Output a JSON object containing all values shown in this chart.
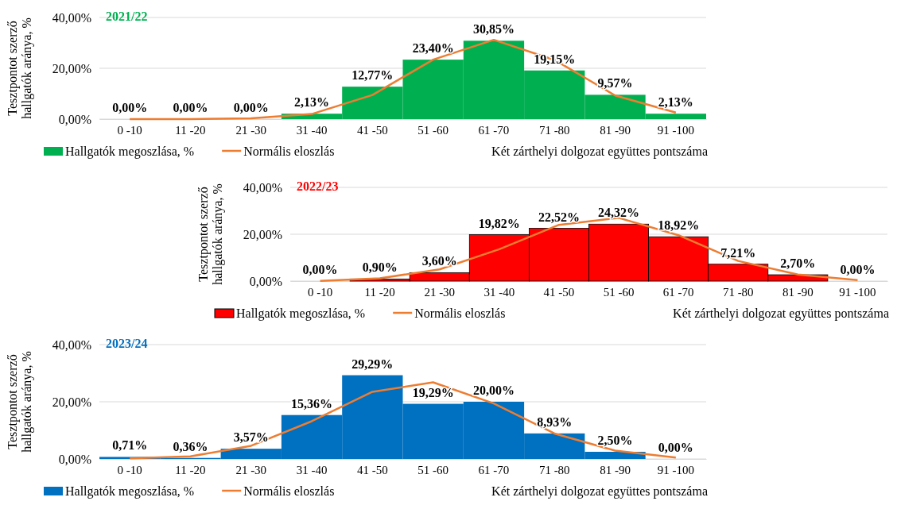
{
  "chart_data": [
    {
      "type": "bar",
      "title": "2021/22",
      "xlabel": "Két zárthelyi dolgozat együttes pontszáma",
      "ylabel": "Tesztpontot szerző\nhallgatók aránya, %",
      "categories": [
        "0 -10",
        "11 -20",
        "21 -30",
        "31 -40",
        "41 -50",
        "51 -60",
        "61 -70",
        "71 -80",
        "81 -90",
        "91 -100"
      ],
      "ylim": [
        0,
        40
      ],
      "yticks": [
        {
          "value": 0,
          "label": "0,00%"
        },
        {
          "value": 20,
          "label": "20,00%"
        },
        {
          "value": 40,
          "label": "40,00%"
        }
      ],
      "grid": "y",
      "legend": "bottom",
      "series": [
        {
          "name": "Hallgatók megoszlása, %",
          "color": "#00b050",
          "values": [
            0,
            0,
            0,
            2.13,
            12.77,
            23.4,
            30.85,
            19.15,
            9.57,
            2.13
          ],
          "value_labels": [
            "0,00%",
            "0,00%",
            "0,00%",
            "2,13%",
            "12,77%",
            "23,40%",
            "30,85%",
            "19,15%",
            "9,57%",
            "2,13%"
          ]
        },
        {
          "name": "Normális eloszlás",
          "type": "line",
          "color": "#ed7d31",
          "values": [
            0,
            0,
            0.3,
            2,
            9.5,
            23.4,
            31.2,
            23.3,
            9.3,
            2.6
          ]
        }
      ]
    },
    {
      "type": "bar",
      "title": "2022/23",
      "xlabel": "Két zárthelyi dolgozat együttes pontszáma",
      "ylabel": "Tesztpontot szerző\nhallgatók aránya, %",
      "categories": [
        "0 -10",
        "11 -20",
        "21 -30",
        "31 -40",
        "41 -50",
        "51 -60",
        "61 -70",
        "71 -80",
        "81 -90",
        "91 -100"
      ],
      "ylim": [
        0,
        40
      ],
      "yticks": [
        {
          "value": 0,
          "label": "0,00%"
        },
        {
          "value": 20,
          "label": "20,00%"
        },
        {
          "value": 40,
          "label": "40,00%"
        }
      ],
      "grid": "y",
      "legend": "bottom",
      "series": [
        {
          "name": "Hallgatók megoszlása, %",
          "color": "#ff0000",
          "values": [
            0,
            0.9,
            3.6,
            19.82,
            22.52,
            24.32,
            18.92,
            7.21,
            2.7,
            0
          ],
          "value_labels": [
            "0,00%",
            "0,90%",
            "3,60%",
            "19,82%",
            "22,52%",
            "24,32%",
            "18,92%",
            "7,21%",
            "2,70%",
            "0,00%"
          ]
        },
        {
          "name": "Normális eloszlás",
          "type": "line",
          "color": "#ed7d31",
          "values": [
            0.1,
            1.2,
            5,
            13.6,
            24,
            27,
            19.6,
            8.6,
            2.8,
            0.4
          ]
        }
      ]
    },
    {
      "type": "bar",
      "title": "2023/24",
      "xlabel": "Két zárthelyi dolgozat együttes pontszáma",
      "ylabel": "Tesztpontot szerző\nhallgatók aránya, %",
      "categories": [
        "0 -10",
        "11 -20",
        "21 -30",
        "31 -40",
        "41 -50",
        "51 -60",
        "61 -70",
        "71 -80",
        "81 -90",
        "91 -100"
      ],
      "ylim": [
        0,
        40
      ],
      "yticks": [
        {
          "value": 0,
          "label": "0,00%"
        },
        {
          "value": 20,
          "label": "20,00%"
        },
        {
          "value": 40,
          "label": "40,00%"
        }
      ],
      "grid": "y",
      "legend": "bottom",
      "series": [
        {
          "name": "Hallgatók megoszlása, %",
          "color": "#0070c0",
          "values": [
            0.71,
            0.36,
            3.57,
            15.36,
            29.29,
            19.29,
            20,
            8.93,
            2.5,
            0
          ],
          "value_labels": [
            "0,71%",
            "0,36%",
            "3,57%",
            "15,36%",
            "29,29%",
            "19,29%",
            "20,00%",
            "8,93%",
            "2,50%",
            "0,00%"
          ]
        },
        {
          "name": "Normális eloszlás",
          "type": "line",
          "color": "#ed7d31",
          "values": [
            0.2,
            0.9,
            4.6,
            13.2,
            23.5,
            26.8,
            19.4,
            8.9,
            2.9,
            0.5
          ]
        }
      ]
    }
  ]
}
